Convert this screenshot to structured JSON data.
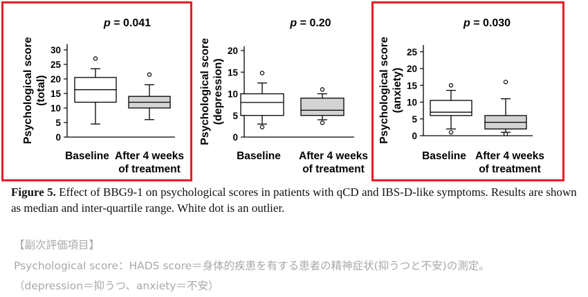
{
  "chart_data": [
    {
      "type": "box",
      "p_value": "p = 0.041",
      "ylabel_line1": "Psychological score",
      "ylabel_line2": "(total)",
      "yticks": [
        0,
        5,
        10,
        15,
        20,
        25,
        30
      ],
      "ylim": [
        0,
        32
      ],
      "highlighted": true,
      "categories": [
        {
          "label_line1": "Baseline",
          "label_line2": "",
          "fill": "#ffffff",
          "whisker_low": 4.5,
          "q1": 12,
          "median": 16.3,
          "q3": 20.5,
          "whisker_high": 23.5,
          "outliers": [
            27
          ]
        },
        {
          "label_line1": "After 4 weeks",
          "label_line2": "of treatment",
          "fill": "#d3d3d3",
          "whisker_low": 6,
          "q1": 10,
          "median": 12,
          "q3": 14,
          "whisker_high": 18,
          "outliers": [
            21.5
          ]
        }
      ]
    },
    {
      "type": "box",
      "p_value": "p = 0.20",
      "ylabel_line1": "Psychological score",
      "ylabel_line2": "(depression)",
      "yticks": [
        0,
        5,
        10,
        15,
        20
      ],
      "ylim": [
        0,
        21
      ],
      "highlighted": false,
      "categories": [
        {
          "label_line1": "Baseline",
          "label_line2": "",
          "fill": "#ffffff",
          "whisker_low": 3,
          "q1": 5,
          "median": 8,
          "q3": 10,
          "whisker_high": 12.5,
          "outliers": [
            2.3,
            14.8
          ]
        },
        {
          "label_line1": "After 4 weeks",
          "label_line2": "of treatment",
          "fill": "#d3d3d3",
          "whisker_low": 4,
          "q1": 5,
          "median": 6.2,
          "q3": 9,
          "whisker_high": 10,
          "outliers": [
            3.3,
            11
          ]
        }
      ]
    },
    {
      "type": "box",
      "p_value": "p = 0.030",
      "ylabel_line1": "Psychological score",
      "ylabel_line2": "(anxiety)",
      "yticks": [
        0,
        5,
        10,
        15,
        20,
        25
      ],
      "ylim": [
        0,
        27
      ],
      "highlighted": true,
      "categories": [
        {
          "label_line1": "Baseline",
          "label_line2": "",
          "fill": "#ffffff",
          "whisker_low": 2,
          "q1": 6,
          "median": 7,
          "q3": 10.5,
          "whisker_high": 13.5,
          "outliers": [
            1,
            15
          ]
        },
        {
          "label_line1": "After 4 weeks",
          "label_line2": "of treatment",
          "fill": "#d3d3d3",
          "whisker_low": 1,
          "q1": 2,
          "median": 4,
          "q3": 6,
          "whisker_high": 11,
          "outliers": [
            0.5,
            16
          ]
        }
      ]
    }
  ],
  "caption": {
    "label": "Figure 5.",
    "text": " Effect of BBG9-1 on psychological scores in patients with qCD and IBS-D-like symptoms. Results are shown as median and inter-quartile range. White dot is an outlier."
  },
  "notes": {
    "heading": "【副次評価項目】",
    "line1": "Psychological score：HADS score＝身体的疾患を有する患者の精神症状(抑うつと不安)の測定。",
    "line2": "（depression＝抑うつ、anxiety＝不安）"
  },
  "colors": {
    "highlight": "#e41e26",
    "box_after": "#d3d3d3",
    "note_text": "#a8a8a8"
  }
}
